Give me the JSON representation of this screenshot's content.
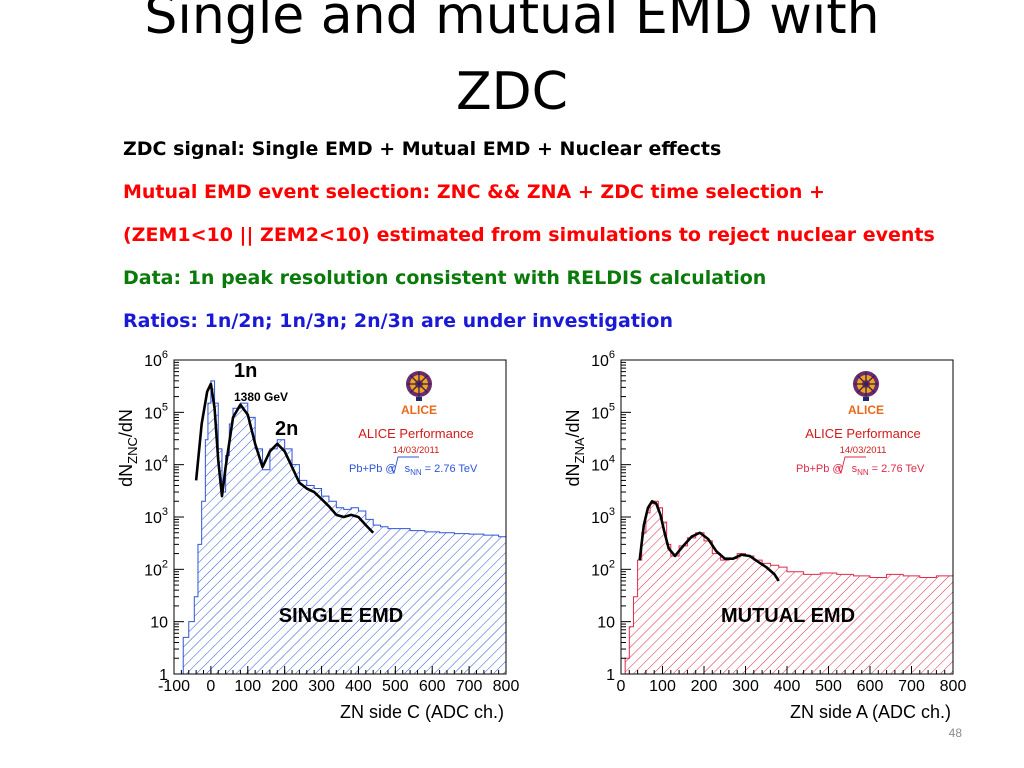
{
  "slide": {
    "title_line1": "Single and mutual EMD with",
    "title_line2": "ZDC",
    "number": "48"
  },
  "bullets": [
    {
      "text": "ZDC signal: Single EMD + Mutual EMD + Nuclear effects",
      "color": "#000000"
    },
    {
      "text": "Mutual EMD event selection: ZNC && ZNA + ZDC time selection +",
      "color": "#ff0000"
    },
    {
      "text": "(ZEM1<10 || ZEM2<10) estimated from simulations to reject nuclear events",
      "color": "#ff0000"
    },
    {
      "text": "Data: 1n peak resolution  consistent with RELDIS calculation",
      "color": "#0a7a0a"
    },
    {
      "text": "Ratios: 1n/2n; 1n/3n; 2n/3n are under investigation",
      "color": "#1a1ad6"
    }
  ],
  "chart_data": [
    {
      "type": "histogram",
      "color": "#2d55d8",
      "xlabel": "ZN side C (ADC ch.)",
      "ylabel_main": "dN",
      "ylabel_sub": "ZNC",
      "ylabel_tail": "/dN",
      "y_log": true,
      "xlim": [
        -100,
        800
      ],
      "ylim": [
        1,
        1000000
      ],
      "xticks": [
        "-100",
        "0",
        "100",
        "200",
        "300",
        "400",
        "500",
        "600",
        "700",
        "800"
      ],
      "yticks": [
        {
          "base": "1",
          "exp": ""
        },
        {
          "base": "10",
          "exp": ""
        },
        {
          "base": "10",
          "exp": "2"
        },
        {
          "base": "10",
          "exp": "3"
        },
        {
          "base": "10",
          "exp": "4"
        },
        {
          "base": "10",
          "exp": "5"
        },
        {
          "base": "10",
          "exp": "6"
        }
      ],
      "annotations": {
        "peak1": "1n",
        "energy": "1380 GeV",
        "peak2": "2n",
        "label": "SINGLE EMD",
        "logo_text": "ALICE",
        "performance": "ALICE Performance",
        "date": "14/03/2011",
        "collision_a": "Pb+Pb @",
        "collision_b": "s",
        "collision_c": "NN",
        "collision_d": " = 2.76 TeV",
        "collision_color": "#2d55d8"
      },
      "hist": {
        "x": [
          -100,
          -75,
          -60,
          -45,
          -35,
          -25,
          -15,
          -8,
          0,
          10,
          20,
          30,
          40,
          50,
          60,
          80,
          100,
          120,
          140,
          160,
          180,
          200,
          220,
          240,
          260,
          280,
          300,
          320,
          340,
          360,
          380,
          400,
          420,
          440,
          460,
          480,
          500,
          540,
          580,
          620,
          660,
          700,
          740,
          780,
          800
        ],
        "y": [
          1,
          5,
          10,
          30,
          300,
          2000,
          30000,
          150000,
          400000,
          150000,
          20000,
          3000,
          15000,
          60000,
          120000,
          150000,
          80000,
          20000,
          8000,
          20000,
          30000,
          20000,
          10000,
          5000,
          4000,
          3500,
          2500,
          2000,
          1500,
          1400,
          1500,
          1300,
          900,
          700,
          650,
          600,
          600,
          550,
          520,
          500,
          480,
          470,
          450,
          420,
          420
        ]
      },
      "fit": {
        "x": [
          -40,
          -25,
          -10,
          0,
          10,
          20,
          30,
          40,
          60,
          80,
          100,
          120,
          140,
          160,
          180,
          200,
          220,
          240,
          260,
          280,
          300,
          320,
          340,
          360,
          380,
          400,
          420,
          440
        ],
        "y": [
          5000,
          60000,
          250000,
          350000,
          120000,
          12000,
          2500,
          9000,
          80000,
          140000,
          90000,
          25000,
          9000,
          18000,
          25000,
          18000,
          9000,
          4500,
          3500,
          3000,
          2200,
          1600,
          1100,
          1000,
          1100,
          1000,
          700,
          500
        ]
      }
    },
    {
      "type": "histogram",
      "color": "#dd2a4a",
      "xlabel": "ZN side A (ADC ch.)",
      "ylabel_main": "dN",
      "ylabel_sub": "ZNA",
      "ylabel_tail": "/dN",
      "y_log": true,
      "xlim": [
        0,
        800
      ],
      "ylim": [
        1,
        1000000
      ],
      "xticks": [
        "0",
        "100",
        "200",
        "300",
        "400",
        "500",
        "600",
        "700",
        "800"
      ],
      "yticks": [
        {
          "base": "1",
          "exp": ""
        },
        {
          "base": "10",
          "exp": ""
        },
        {
          "base": "10",
          "exp": "2"
        },
        {
          "base": "10",
          "exp": "3"
        },
        {
          "base": "10",
          "exp": "4"
        },
        {
          "base": "10",
          "exp": "5"
        },
        {
          "base": "10",
          "exp": "6"
        }
      ],
      "annotations": {
        "peak1": "",
        "energy": "",
        "peak2": "",
        "label": "MUTUAL EMD",
        "logo_text": "ALICE",
        "performance": "ALICE Performance",
        "date": "14/03/2011",
        "collision_a": "Pb+Pb @",
        "collision_b": "s",
        "collision_c": "NN",
        "collision_d": " = 2.76 TeV",
        "collision_color": "#dd2a4a"
      },
      "hist": {
        "x": [
          0,
          10,
          20,
          30,
          40,
          50,
          60,
          70,
          80,
          90,
          100,
          110,
          120,
          140,
          160,
          180,
          200,
          220,
          240,
          260,
          280,
          300,
          320,
          340,
          360,
          380,
          400,
          440,
          480,
          520,
          560,
          600,
          640,
          680,
          720,
          760,
          800
        ],
        "y": [
          1,
          2,
          8,
          30,
          150,
          500,
          1200,
          1800,
          2000,
          1500,
          800,
          300,
          180,
          280,
          400,
          500,
          350,
          200,
          150,
          160,
          200,
          180,
          150,
          130,
          120,
          110,
          90,
          80,
          85,
          80,
          75,
          70,
          80,
          75,
          70,
          75,
          70
        ]
      },
      "fit": {
        "x": [
          45,
          55,
          65,
          75,
          85,
          95,
          105,
          115,
          130,
          150,
          170,
          190,
          210,
          230,
          250,
          270,
          290,
          310,
          330,
          350,
          370,
          380
        ],
        "y": [
          150,
          700,
          1500,
          2000,
          1800,
          1100,
          500,
          250,
          180,
          280,
          420,
          500,
          380,
          220,
          160,
          160,
          190,
          180,
          140,
          110,
          80,
          60
        ]
      }
    }
  ]
}
